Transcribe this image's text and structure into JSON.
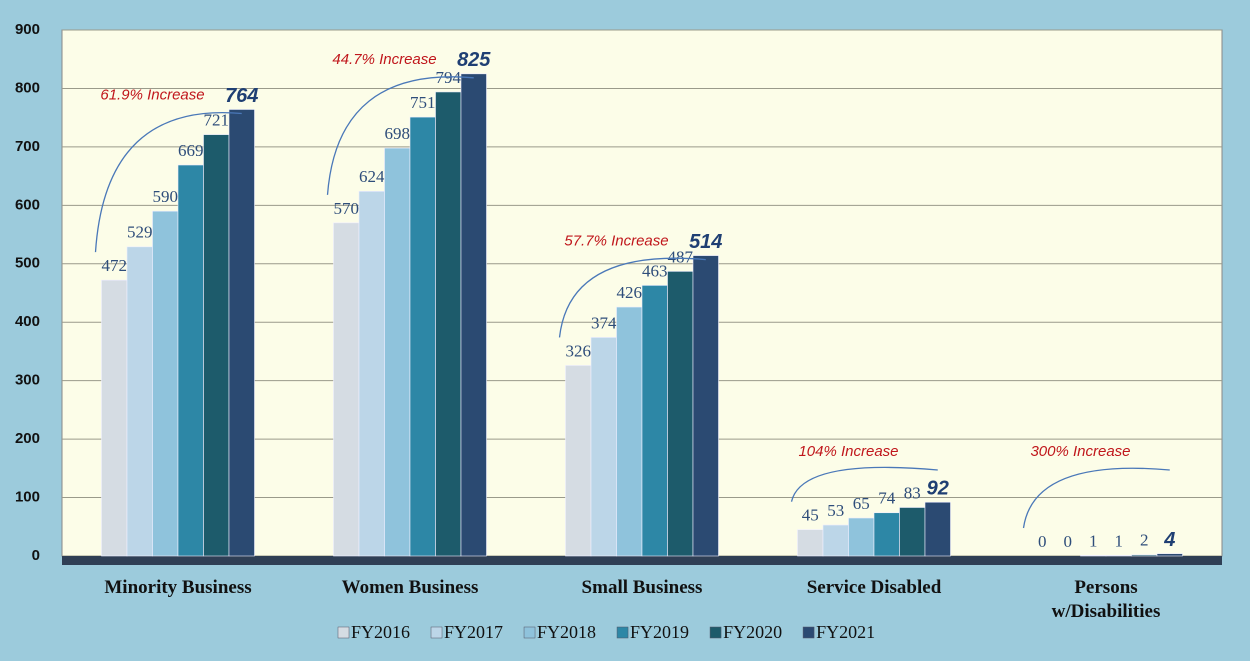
{
  "chart_data": {
    "type": "bar",
    "categories": [
      "Minority Business",
      "Women Business",
      "Small Business",
      "Service Disabled",
      "Persons\nw/Disabilities"
    ],
    "series": [
      {
        "name": "FY2016",
        "color": "#d5dce3",
        "values": [
          472,
          570,
          326,
          45,
          0
        ]
      },
      {
        "name": "FY2017",
        "color": "#bcd6e8",
        "values": [
          529,
          624,
          374,
          53,
          0
        ]
      },
      {
        "name": "FY2018",
        "color": "#8fc3dc",
        "values": [
          590,
          698,
          426,
          65,
          1
        ]
      },
      {
        "name": "FY2019",
        "color": "#2d87a6",
        "values": [
          669,
          751,
          463,
          74,
          1
        ]
      },
      {
        "name": "FY2020",
        "color": "#1d5b6b",
        "values": [
          721,
          794,
          487,
          83,
          2
        ]
      },
      {
        "name": "FY2021",
        "color": "#2b4a72",
        "values": [
          764,
          825,
          514,
          92,
          4
        ]
      }
    ],
    "annotations": [
      "61.9% Increase",
      "44.7% Increase",
      "57.7% Increase",
      "104% Increase",
      "300% Increase"
    ],
    "ylim": [
      0,
      900
    ],
    "yticks": [
      0,
      100,
      200,
      300,
      400,
      500,
      600,
      700,
      800,
      900
    ],
    "grid": true
  }
}
